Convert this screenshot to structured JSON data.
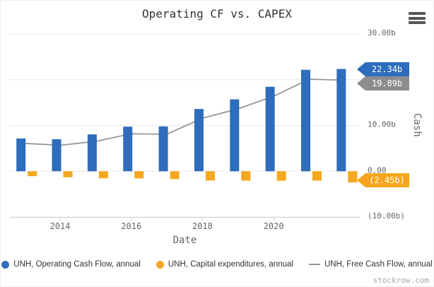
{
  "title": "Operating CF vs. CAPEX",
  "watermark": "stockrow.com",
  "icons": {
    "menu": "hamburger-menu"
  },
  "axes": {
    "x": {
      "title": "Date",
      "ticks": [
        "2014",
        "2016",
        "2018",
        "2020"
      ]
    },
    "y": {
      "title": "Cash",
      "labels": [
        {
          "value": 30,
          "text": "30.00b"
        },
        {
          "value": 10,
          "text": "10.00b"
        },
        {
          "value": 0,
          "text": "0.00"
        },
        {
          "value": -10,
          "text": "(10.00b)"
        }
      ]
    }
  },
  "tags": {
    "operating_cf": {
      "label": "22.34b",
      "color": "#2d6dbb"
    },
    "free_cf": {
      "label": "19.89b",
      "color": "#8d8d8d"
    },
    "capex": {
      "label": "(2.45b)",
      "color": "#f6a71f"
    }
  },
  "legend": {
    "items": [
      {
        "label": "UNH, Operating Cash Flow, annual",
        "marker": "circle",
        "color": "#2d6dbb"
      },
      {
        "label": "UNH, Capital expenditures, annual",
        "marker": "circle",
        "color": "#f6a71f"
      },
      {
        "label": "UNH, Free Cash Flow, annual",
        "marker": "line",
        "color": "#969696"
      }
    ]
  },
  "chart_data": {
    "type": "combo (column + line)",
    "title": "Operating CF vs. CAPEX",
    "xlabel": "Date",
    "ylabel": "Cash",
    "ylim": [
      -10,
      30
    ],
    "grid_values": [
      30,
      20,
      10,
      0,
      -10
    ],
    "legend_position": "bottom",
    "units": "billions USD",
    "x": [
      2012,
      2013,
      2014,
      2015,
      2016,
      2017,
      2018,
      2019,
      2020,
      2021
    ],
    "series": [
      {
        "name": "UNH, Operating Cash Flow, annual",
        "type": "column",
        "color": "#2d6dbb",
        "values": [
          7.16,
          6.99,
          8.05,
          9.74,
          9.8,
          13.6,
          15.71,
          18.46,
          22.17,
          22.34
        ]
      },
      {
        "name": "UNH, Capital expenditures, annual",
        "type": "column",
        "color": "#f6a71f",
        "values": [
          -1.07,
          -1.31,
          -1.53,
          -1.56,
          -1.71,
          -2.02,
          -2.06,
          -2.07,
          -2.05,
          -2.45
        ]
      },
      {
        "name": "UNH, Free Cash Flow, annual",
        "type": "line",
        "color": "#969696",
        "values": [
          6.09,
          5.68,
          6.52,
          8.18,
          8.09,
          11.58,
          13.65,
          16.39,
          20.12,
          19.89
        ]
      }
    ],
    "last_value_labels": {
      "operating_cf": "22.34b",
      "capex": "(2.45b)",
      "free_cf": "19.89b"
    }
  }
}
